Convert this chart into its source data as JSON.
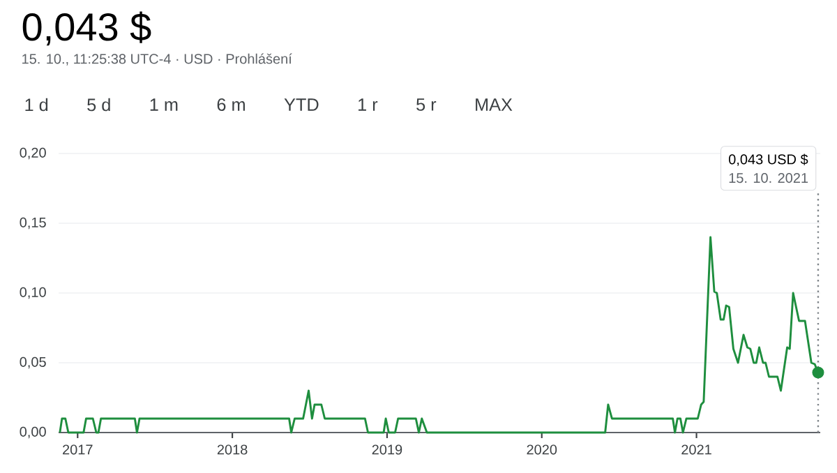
{
  "chart_data": {
    "type": "line",
    "title": "0,043 $",
    "subtitle": "15. 10., 11:25:38 UTC-4 · USD · Prohlášení",
    "annotations": [
      "1 d",
      "5 d",
      "1 m",
      "6 m",
      "YTD",
      "1 r",
      "5 r",
      "MAX",
      "15. 10. 2021"
    ],
    "series": [
      {
        "color": "#1e8e3e",
        "x": [
          "2016-11-20",
          "2016-11-25",
          "2016-12-03",
          "2016-12-10",
          "2017-01-15",
          "2017-01-21",
          "2017-02-06",
          "2017-02-14",
          "2017-02-19",
          "2017-02-25",
          "2017-05-16",
          "2017-05-21",
          "2017-05-27",
          "2018-05-15",
          "2018-05-20",
          "2018-05-28",
          "2018-06-17",
          "2018-06-30",
          "2018-07-08",
          "2018-07-14",
          "2018-07-30",
          "2018-08-07",
          "2018-11-10",
          "2018-11-17",
          "2018-12-24",
          "2018-12-29",
          "2019-01-05",
          "2019-01-20",
          "2019-01-27",
          "2019-03-10",
          "2019-03-17",
          "2019-03-24",
          "2019-04-05",
          "2020-05-30",
          "2020-06-06",
          "2020-06-15",
          "2020-11-06",
          "2020-11-11",
          "2020-11-17",
          "2020-11-24",
          "2020-11-30",
          "2020-12-08",
          "2021-01-04",
          "2021-01-12",
          "2021-01-18",
          "2021-02-03",
          "2021-02-12",
          "2021-02-18",
          "2021-02-27",
          "2021-03-06",
          "2021-03-12",
          "2021-03-19",
          "2021-03-29",
          "2021-04-09",
          "2021-04-22",
          "2021-05-01",
          "2021-05-08",
          "2021-05-16",
          "2021-05-22",
          "2021-05-29",
          "2021-06-07",
          "2021-06-13",
          "2021-06-21",
          "2021-07-11",
          "2021-07-19",
          "2021-08-03",
          "2021-08-09",
          "2021-08-17",
          "2021-08-31",
          "2021-09-14",
          "2021-09-29",
          "2021-10-07",
          "2021-10-15"
        ],
        "values": [
          0,
          0.01,
          0.01,
          0,
          0,
          0.01,
          0.01,
          0,
          0,
          0.01,
          0.01,
          0,
          0.01,
          0.01,
          0,
          0.01,
          0.01,
          0.03,
          0.01,
          0.02,
          0.02,
          0.01,
          0.01,
          0,
          0,
          0.01,
          0,
          0,
          0.01,
          0.01,
          0,
          0.01,
          0,
          0,
          0.02,
          0.01,
          0.01,
          0,
          0.01,
          0.01,
          0,
          0.01,
          0.01,
          0.02,
          0.022,
          0.14,
          0.101,
          0.1,
          0.081,
          0.081,
          0.091,
          0.09,
          0.06,
          0.05,
          0.07,
          0.061,
          0.06,
          0.05,
          0.05,
          0.061,
          0.05,
          0.05,
          0.04,
          0.04,
          0.03,
          0.061,
          0.06,
          0.1,
          0.08,
          0.08,
          0.05,
          0.049,
          0.043
        ]
      },
      {
        "type": "scatter",
        "color": "#1e8e3e",
        "marker": "circle",
        "x": [
          "2021-10-15"
        ],
        "values": [
          0.043
        ]
      }
    ],
    "xlim": [
      "2016-11-17",
      "2021-10-20"
    ],
    "xticks": [
      {
        "value": "2017-01-01",
        "label": "2017"
      },
      {
        "value": "2018-01-01",
        "label": "2018"
      },
      {
        "value": "2019-01-01",
        "label": "2019"
      },
      {
        "value": "2020-01-01",
        "label": "2020"
      },
      {
        "value": "2021-01-01",
        "label": "2021"
      }
    ],
    "ylim": [
      0,
      0.2
    ],
    "yticks": [
      {
        "value": 0,
        "label": "0,00"
      },
      {
        "value": 0.05,
        "label": "0,05"
      },
      {
        "value": 0.1,
        "label": "0,10"
      },
      {
        "value": 0.15,
        "label": "0,15"
      },
      {
        "value": 0.2,
        "label": "0,20"
      }
    ],
    "ref_lines": [
      {
        "axis": "x",
        "value": "2021-10-15",
        "label": "0,043 USD $",
        "color": "#80868b",
        "line_style": "dotted"
      }
    ],
    "grid": "y",
    "marker": "none",
    "line_style": "solid"
  }
}
